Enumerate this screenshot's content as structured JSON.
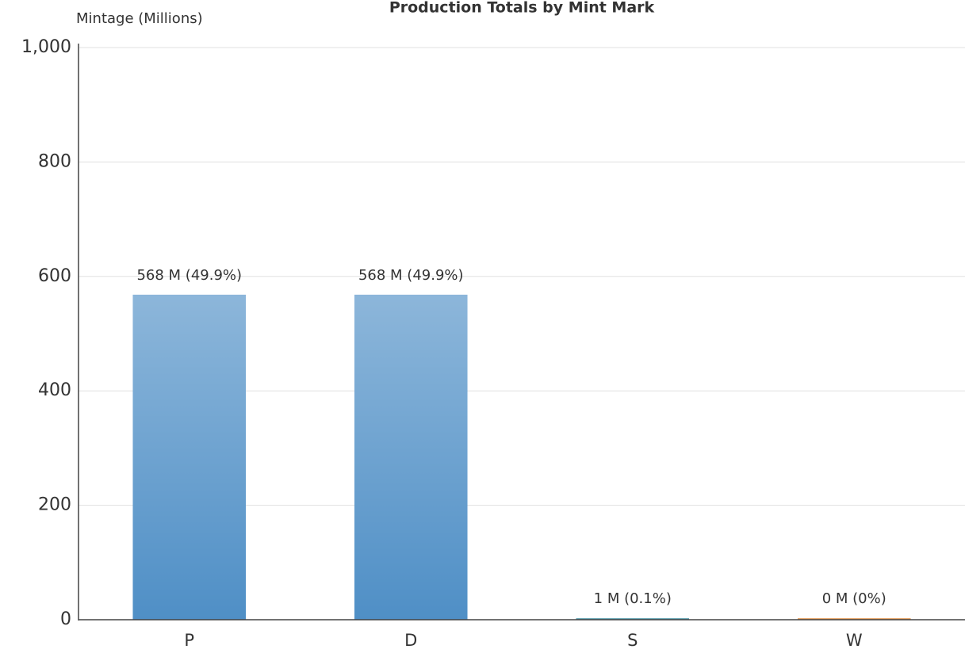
{
  "chart_data": {
    "type": "bar",
    "title": "Production Totals by Mint Mark",
    "y_label": "Mintage (Millions)",
    "categories": [
      "P",
      "D",
      "S",
      "W"
    ],
    "values": [
      568,
      568,
      1,
      0
    ],
    "value_labels": [
      "568 M (49.9%)",
      "568 M (49.9%)",
      "1 M (0.1%)",
      "0 M (0%)"
    ],
    "colors": [
      "#4f8fc6",
      "#4f8fc6",
      "#3b8a9c",
      "#e08a3c"
    ],
    "ylim": [
      0,
      1000
    ],
    "yticks": [
      0,
      200,
      400,
      600,
      800,
      {
        "value": 1000,
        "label": "1,000"
      }
    ],
    "grid": true
  }
}
